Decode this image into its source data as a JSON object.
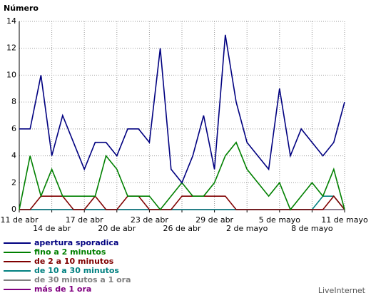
{
  "chart_data": {
    "type": "line",
    "title": "Número",
    "credit": "LiveInternet",
    "categories": [
      "11 de abr",
      null,
      null,
      "14 de abr",
      null,
      null,
      "17 de abr",
      null,
      null,
      "20 de abr",
      null,
      null,
      "23 de abr",
      null,
      null,
      "26 de abr",
      null,
      null,
      "29 de abr",
      null,
      null,
      "2 de mayo",
      null,
      null,
      "5 de mayo",
      null,
      null,
      "8 de mayo",
      null,
      null,
      "11 de mayo"
    ],
    "series": [
      {
        "name": "apertura sporadica",
        "color": "#000080",
        "values": [
          6,
          6,
          10,
          4,
          7,
          5,
          3,
          5,
          5,
          4,
          6,
          6,
          5,
          12,
          3,
          2,
          4,
          7,
          3,
          13,
          8,
          5,
          4,
          3,
          9,
          4,
          6,
          5,
          4,
          5,
          8
        ]
      },
      {
        "name": "fino a 2 minutos",
        "color": "#008000",
        "values": [
          0,
          4,
          1,
          3,
          1,
          1,
          1,
          1,
          4,
          3,
          1,
          1,
          1,
          0,
          1,
          2,
          1,
          1,
          2,
          4,
          5,
          3,
          2,
          1,
          2,
          0,
          1,
          2,
          1,
          3,
          0
        ]
      },
      {
        "name": "de 2 a 10 minutos",
        "color": "#800000",
        "values": [
          0,
          0,
          1,
          1,
          1,
          0,
          0,
          1,
          0,
          0,
          1,
          1,
          0,
          0,
          0,
          1,
          1,
          1,
          1,
          1,
          0,
          0,
          0,
          0,
          0,
          0,
          0,
          0,
          0,
          1,
          0
        ]
      },
      {
        "name": "de 10 a 30 minutos",
        "color": "#008080",
        "values": [
          0,
          0,
          0,
          0,
          0,
          0,
          0,
          0,
          0,
          0,
          0,
          0,
          0,
          0,
          0,
          0,
          0,
          0,
          0,
          0,
          0,
          0,
          0,
          0,
          0,
          0,
          0,
          0,
          1,
          1,
          0
        ]
      },
      {
        "name": "de 30 minutos a 1 ora",
        "color": "#808080",
        "values": [
          0,
          0,
          0,
          0,
          0,
          0,
          0,
          0,
          0,
          0,
          0,
          0,
          0,
          0,
          0,
          0,
          0,
          0,
          0,
          0,
          0,
          0,
          0,
          0,
          0,
          0,
          0,
          0,
          0,
          0,
          0
        ]
      },
      {
        "name": "más de 1 ora",
        "color": "#800080",
        "values": [
          0,
          0,
          0,
          0,
          0,
          0,
          0,
          0,
          0,
          0,
          0,
          0,
          0,
          0,
          0,
          0,
          0,
          0,
          0,
          0,
          0,
          0,
          0,
          0,
          0,
          0,
          0,
          0,
          0,
          0,
          0
        ]
      }
    ],
    "ylim": [
      0,
      14
    ],
    "yticks": [
      0,
      2,
      4,
      6,
      8,
      10,
      12,
      14
    ],
    "grid": true
  }
}
